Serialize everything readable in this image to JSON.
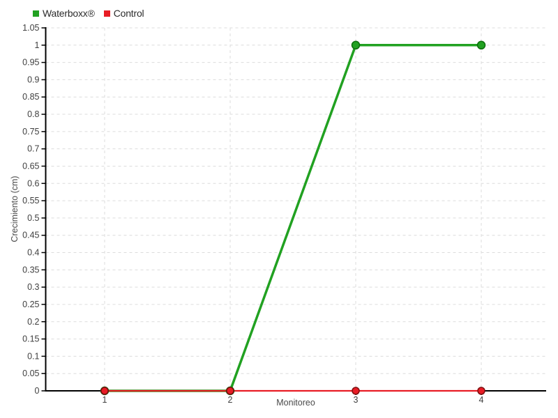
{
  "chart_data": {
    "type": "line",
    "title": "",
    "xlabel": "Monitoreo",
    "ylabel": "Crecimiento (cm)",
    "x": [
      1,
      2,
      3,
      4
    ],
    "xticks": [
      "1",
      "2",
      "3",
      "4"
    ],
    "ylim": [
      0,
      1.05
    ],
    "yticks": [
      0,
      0.05,
      0.1,
      0.15,
      0.2,
      0.25,
      0.3,
      0.35,
      0.4,
      0.45,
      0.5,
      0.55,
      0.6,
      0.65,
      0.7,
      0.75,
      0.8,
      0.85,
      0.9,
      0.95,
      1,
      1.05
    ],
    "grid": true,
    "grid_style": "dashed",
    "legend_position": "top-left",
    "series": [
      {
        "name": "Waterboxx®",
        "color": "#21a121",
        "marker_border": "#0d6e0d",
        "marker": "circle",
        "values": [
          0,
          0,
          1,
          1
        ]
      },
      {
        "name": "Control",
        "color": "#e81c25",
        "marker_border": "#7d0f0f",
        "marker": "circle",
        "values": [
          0,
          0,
          0,
          0
        ]
      }
    ],
    "colors": {
      "grid": "#dcdcdc",
      "axis": "#000000",
      "tick_text": "#3f3f3f",
      "axis_label_text": "#4a4a4a",
      "background": "#ffffff"
    }
  }
}
